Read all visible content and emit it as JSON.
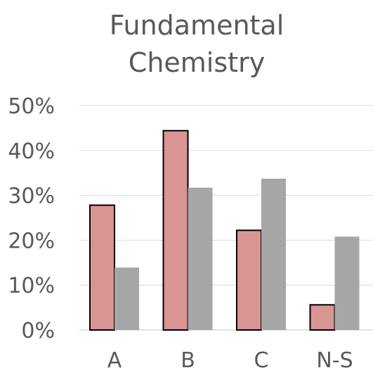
{
  "chart_data": {
    "type": "bar",
    "title_lines": [
      "Fundamental",
      "Chemistry"
    ],
    "categories": [
      "A",
      "B",
      "C",
      "N-S"
    ],
    "series": [
      {
        "values": [
          0.278,
          0.444,
          0.222,
          0.056
        ],
        "color": "#d99594",
        "outline": "#000000"
      },
      {
        "values": [
          0.139,
          0.317,
          0.337,
          0.208
        ],
        "color": "#a6a6a6"
      }
    ],
    "ylim": [
      0,
      0.5
    ],
    "y_ticks": [
      0,
      0.1,
      0.2,
      0.3,
      0.4,
      0.5
    ],
    "y_tick_labels": [
      "0%",
      "10%",
      "20%",
      "30%",
      "40%",
      "50%"
    ],
    "grid": true,
    "legend": "none"
  }
}
